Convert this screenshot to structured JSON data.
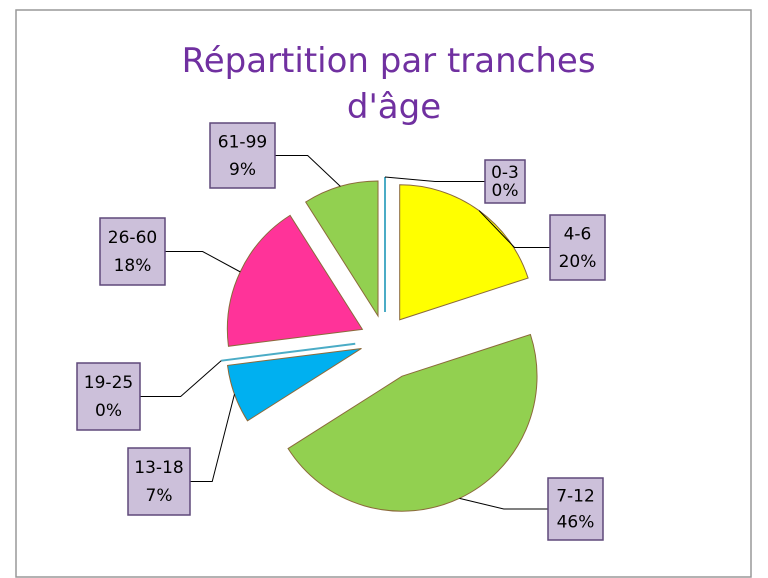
{
  "chart_data": {
    "type": "pie",
    "title": "Répartition par tranches d'âge",
    "categories": [
      "0-3",
      "4-6",
      "7-12",
      "13-18",
      "19-25",
      "26-60",
      "61-99"
    ],
    "values": [
      0,
      20,
      46,
      7,
      0,
      18,
      9
    ],
    "value_labels": [
      "0%",
      "20%",
      "46%",
      "7%",
      "0%",
      "18%",
      "9%"
    ],
    "colors": [
      "#dbeef4",
      "#ffff00",
      "#92d050",
      "#00b0f0",
      "#4bacc6",
      "#ff3399",
      "#92d050"
    ]
  }
}
